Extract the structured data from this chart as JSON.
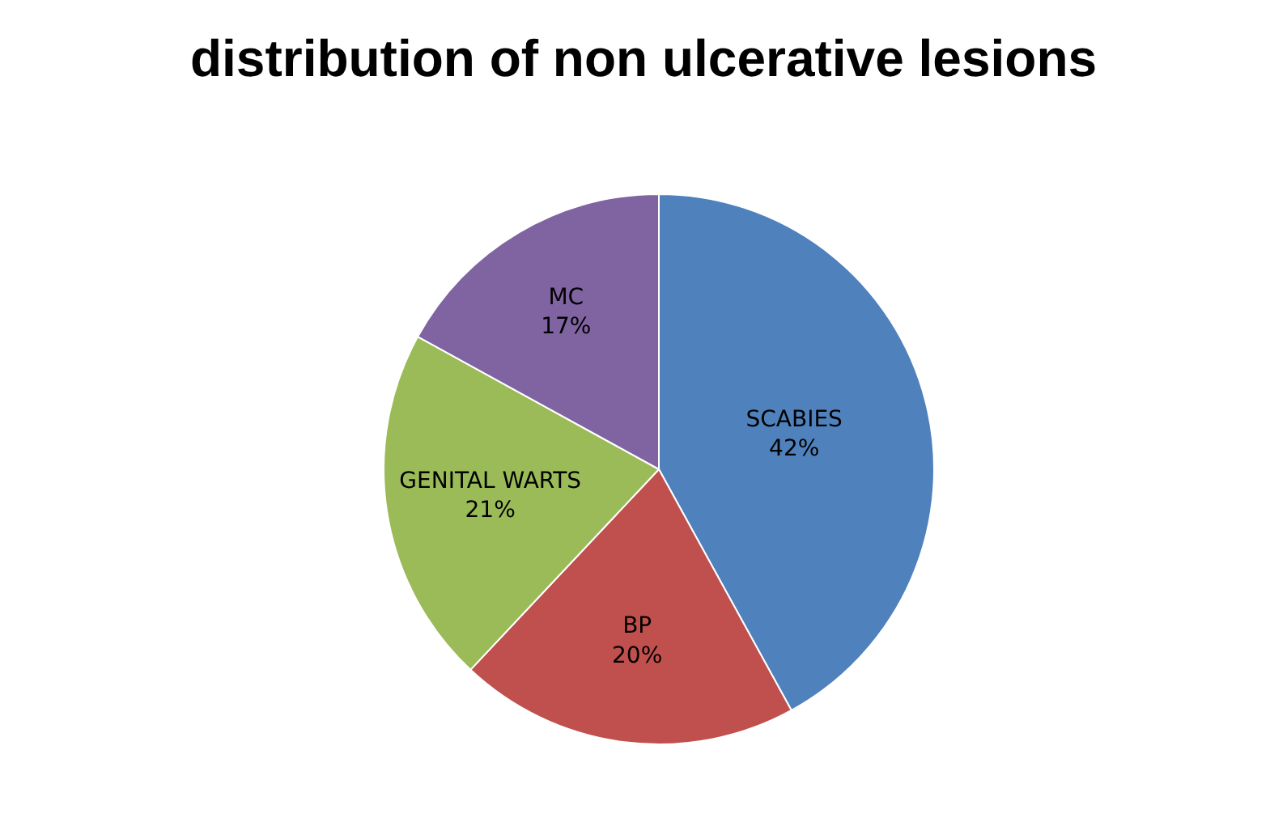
{
  "chart_data": {
    "type": "pie",
    "title": "distribution of non ulcerative lesions",
    "categories": [
      "SCABIES",
      "BP",
      "GENITAL WARTS",
      "MC"
    ],
    "values": [
      42,
      20,
      21,
      17
    ],
    "colors": [
      "#4f81bd",
      "#c0504d",
      "#9bbb59",
      "#8064a2"
    ],
    "value_labels": [
      "42%",
      "20%",
      "21%",
      "17%"
    ],
    "legend": false
  }
}
